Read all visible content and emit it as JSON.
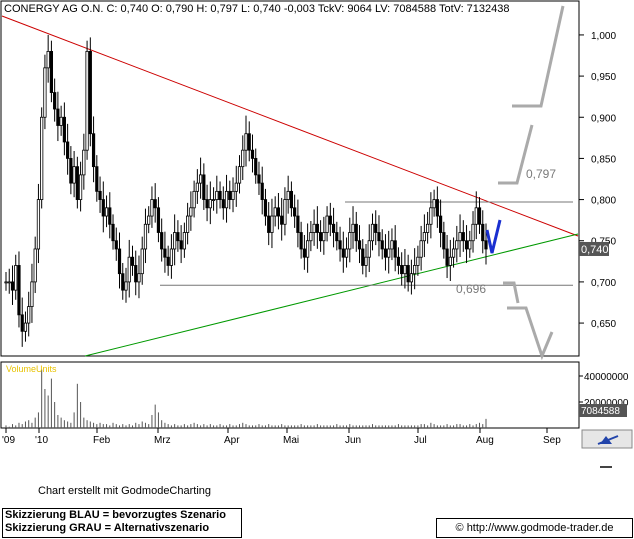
{
  "header": {
    "text": "CONERGY AG O.N. C: 0,740 O: 0,790 H: 0,797 L: 0,740 -0,003 TckV: 9064 LV: 7084588 TotV: 7132438"
  },
  "chart_data": {
    "type": "candlestick",
    "price_axis": {
      "ticks": [
        "1,000",
        "0,950",
        "0,900",
        "0,850",
        "0,800",
        "0,750",
        "0,700",
        "0,650"
      ],
      "tick_values": [
        1.0,
        0.95,
        0.9,
        0.85,
        0.8,
        0.75,
        0.7,
        0.65
      ],
      "ylim": [
        0.61,
        1.04
      ],
      "last_price_label": "0,740",
      "last_price": 0.74
    },
    "time_axis": {
      "labels": [
        "'09",
        "'10",
        "Feb",
        "Mrz",
        "Apr",
        "Mai",
        "Jun",
        "Jul",
        "Aug",
        "Sep"
      ]
    },
    "annotations": {
      "resistance_label": "0,797",
      "resistance_value": 0.797,
      "support_label": "0,696",
      "support_value": 0.696
    },
    "trendlines": {
      "downtrend_color": "#cc0000",
      "uptrend_color": "#009900"
    },
    "close_path": [
      0.7,
      0.7,
      0.69,
      0.72,
      0.66,
      0.64,
      0.65,
      0.67,
      0.7,
      0.74,
      0.8,
      0.9,
      0.96,
      0.98,
      0.93,
      0.91,
      0.89,
      0.9,
      0.87,
      0.85,
      0.82,
      0.84,
      0.8,
      0.83,
      0.86,
      0.98,
      0.88,
      0.84,
      0.81,
      0.8,
      0.78,
      0.79,
      0.77,
      0.75,
      0.74,
      0.71,
      0.69,
      0.7,
      0.73,
      0.72,
      0.7,
      0.71,
      0.74,
      0.77,
      0.78,
      0.8,
      0.79,
      0.76,
      0.74,
      0.73,
      0.72,
      0.74,
      0.76,
      0.75,
      0.74,
      0.76,
      0.78,
      0.79,
      0.81,
      0.82,
      0.83,
      0.8,
      0.79,
      0.8,
      0.8,
      0.81,
      0.8,
      0.79,
      0.81,
      0.8,
      0.81,
      0.82,
      0.84,
      0.86,
      0.88,
      0.86,
      0.85,
      0.83,
      0.82,
      0.8,
      0.78,
      0.76,
      0.78,
      0.79,
      0.78,
      0.77,
      0.8,
      0.81,
      0.79,
      0.78,
      0.76,
      0.74,
      0.73,
      0.75,
      0.76,
      0.77,
      0.76,
      0.75,
      0.76,
      0.78,
      0.77,
      0.76,
      0.75,
      0.74,
      0.73,
      0.74,
      0.76,
      0.77,
      0.75,
      0.74,
      0.72,
      0.73,
      0.75,
      0.77,
      0.76,
      0.75,
      0.74,
      0.73,
      0.74,
      0.75,
      0.73,
      0.72,
      0.71,
      0.72,
      0.7,
      0.71,
      0.72,
      0.73,
      0.75,
      0.76,
      0.77,
      0.79,
      0.8,
      0.78,
      0.76,
      0.74,
      0.72,
      0.73,
      0.74,
      0.75,
      0.76,
      0.75,
      0.74,
      0.75,
      0.77,
      0.79,
      0.77,
      0.75,
      0.74
    ],
    "volume_axis": {
      "title": "VolumeUnits",
      "ticks": [
        "40000000",
        "20000000"
      ],
      "tick_values": [
        40000000,
        20000000
      ],
      "ylim": [
        0,
        50000000
      ],
      "last_volume_label": "7084588",
      "last_volume": 7084588
    },
    "volume_path": [
      2,
      1,
      3,
      2,
      4,
      3,
      5,
      6,
      4,
      8,
      12,
      45,
      30,
      25,
      38,
      20,
      10,
      8,
      6,
      5,
      4,
      12,
      34,
      20,
      8,
      6,
      5,
      4,
      3,
      4,
      3,
      3,
      2,
      4,
      3,
      2,
      3,
      2,
      3,
      2,
      4,
      3,
      5,
      4,
      3,
      10,
      18,
      12,
      6,
      4,
      3,
      2,
      3,
      2,
      2,
      3,
      2,
      3,
      4,
      3,
      2,
      3,
      2,
      3,
      2,
      2,
      3,
      2,
      2,
      3,
      2,
      2,
      3,
      4,
      3,
      2,
      2,
      2,
      3,
      2,
      2,
      3,
      2,
      2,
      2,
      3,
      2,
      2,
      2,
      2,
      2,
      3,
      2,
      2,
      2,
      2,
      3,
      2,
      2,
      2,
      2,
      2,
      3,
      2,
      2,
      2,
      3,
      2,
      2,
      2,
      2,
      2,
      2,
      3,
      2,
      2,
      2,
      2,
      2,
      2,
      2,
      3,
      2,
      2,
      2,
      2,
      2,
      2,
      3,
      3,
      2,
      4,
      3,
      2,
      2,
      2,
      3,
      2,
      2,
      3,
      3,
      2,
      2,
      3,
      2,
      3,
      4,
      3,
      7
    ]
  },
  "footer": {
    "credit": "Chart erstellt mit GodmodeCharting",
    "legend_blue": "Skizzierung BLAU = bevorzugtes Szenario",
    "legend_gray": "Skizzierung GRAU = Alternativszenario",
    "url": "© http://www.godmode-trader.de"
  }
}
